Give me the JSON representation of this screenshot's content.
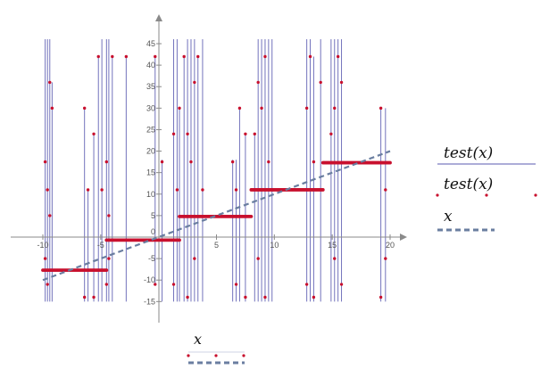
{
  "chart_data": {
    "type": "line",
    "xlim": [
      -11,
      21
    ],
    "ylim": [
      -18.5,
      49
    ],
    "x_ticks": [
      -10,
      -5,
      5,
      10,
      15,
      20
    ],
    "x_tick_labels": [
      "-10",
      "-5",
      "5",
      "10",
      "15",
      "20"
    ],
    "y_ticks": [
      -15,
      -10,
      -5,
      5,
      10,
      15,
      20,
      25,
      30,
      35,
      40,
      45
    ],
    "y_tick_labels": [
      "-15",
      "-10",
      "-5",
      "5",
      "10",
      "15",
      "20",
      "25",
      "30",
      "35",
      "40",
      "45"
    ],
    "origin_label": "0",
    "grid": false,
    "legend_position": "right",
    "series": [
      {
        "name": "test(x)",
        "style": "line",
        "color": "#5a5ab0",
        "steps": [
          {
            "x0": -10,
            "x1": -4.5,
            "y": -7.7
          },
          {
            "x0": -4.5,
            "x1": 1.8,
            "y": -0.7
          },
          {
            "x0": 1.8,
            "x1": 8,
            "y": 4.8
          },
          {
            "x0": 8,
            "x1": 14.2,
            "y": 11
          },
          {
            "x0": 14.2,
            "x1": 20,
            "y": 17.3
          }
        ],
        "spikes": [
          {
            "x": -9.8,
            "y0": -15,
            "y1": 49
          },
          {
            "x": -9.6,
            "y0": -15,
            "y1": 49
          },
          {
            "x": -9.4,
            "y0": -15,
            "y1": 49
          },
          {
            "x": -9.2,
            "y0": -15,
            "y1": 36
          },
          {
            "x": -6.4,
            "y0": -15,
            "y1": 30
          },
          {
            "x": -6.1,
            "y0": -15,
            "y1": 11
          },
          {
            "x": -5.6,
            "y0": -15,
            "y1": 24
          },
          {
            "x": -5.2,
            "y0": -15,
            "y1": 42
          },
          {
            "x": -4.9,
            "y0": -15,
            "y1": 49
          },
          {
            "x": -4.5,
            "y0": -15,
            "y1": 49
          },
          {
            "x": -4.3,
            "y0": -15,
            "y1": 49
          },
          {
            "x": -4.0,
            "y0": -15,
            "y1": 42
          },
          {
            "x": -2.8,
            "y0": -15,
            "y1": 42
          },
          {
            "x": -0.3,
            "y0": -11,
            "y1": 42
          },
          {
            "x": 0.3,
            "y0": -15,
            "y1": 18
          },
          {
            "x": 1.3,
            "y0": -15,
            "y1": 49
          },
          {
            "x": 1.6,
            "y0": -15,
            "y1": 49
          },
          {
            "x": 1.8,
            "y0": -15,
            "y1": 30
          },
          {
            "x": 2.2,
            "y0": -15,
            "y1": 42
          },
          {
            "x": 2.5,
            "y0": -15,
            "y1": 49
          },
          {
            "x": 2.8,
            "y0": -15,
            "y1": 49
          },
          {
            "x": 3.1,
            "y0": -15,
            "y1": 49
          },
          {
            "x": 3.4,
            "y0": -15,
            "y1": 42
          },
          {
            "x": 3.8,
            "y0": -15,
            "y1": 49
          },
          {
            "x": 6.4,
            "y0": -15,
            "y1": 18
          },
          {
            "x": 6.7,
            "y0": -15,
            "y1": 18
          },
          {
            "x": 7.0,
            "y0": -15,
            "y1": 30
          },
          {
            "x": 7.5,
            "y0": -15,
            "y1": 24
          },
          {
            "x": 8.3,
            "y0": -15,
            "y1": 24
          },
          {
            "x": 8.6,
            "y0": -15,
            "y1": 49
          },
          {
            "x": 8.9,
            "y0": -15,
            "y1": 49
          },
          {
            "x": 9.2,
            "y0": -15,
            "y1": 49
          },
          {
            "x": 9.5,
            "y0": -15,
            "y1": 49
          },
          {
            "x": 9.8,
            "y0": -15,
            "y1": 49
          },
          {
            "x": 12.8,
            "y0": -15,
            "y1": 49
          },
          {
            "x": 13.1,
            "y0": -15,
            "y1": 49
          },
          {
            "x": 13.4,
            "y0": -15,
            "y1": 42
          },
          {
            "x": 14.0,
            "y0": -15,
            "y1": 49
          },
          {
            "x": 14.9,
            "y0": -15,
            "y1": 49
          },
          {
            "x": 15.2,
            "y0": -15,
            "y1": 49
          },
          {
            "x": 15.5,
            "y0": -15,
            "y1": 49
          },
          {
            "x": 15.8,
            "y0": -15,
            "y1": 49
          },
          {
            "x": 19.2,
            "y0": -15,
            "y1": 30
          },
          {
            "x": 19.6,
            "y0": -15,
            "y1": 30
          }
        ]
      },
      {
        "name": "test(x)",
        "style": "points",
        "color": "#c8102e",
        "point_spacing": 0.1,
        "extra_points": [
          {
            "x": -9.8,
            "y": 17.5
          },
          {
            "x": -9.6,
            "y": 11
          },
          {
            "x": -9.4,
            "y": 36
          },
          {
            "x": -9.2,
            "y": 30
          },
          {
            "x": -9.8,
            "y": -5
          },
          {
            "x": -9.6,
            "y": -11
          },
          {
            "x": -9.4,
            "y": 5
          },
          {
            "x": -6.4,
            "y": 30
          },
          {
            "x": -6.1,
            "y": 11
          },
          {
            "x": -6.4,
            "y": -14
          },
          {
            "x": -5.6,
            "y": 24
          },
          {
            "x": -5.6,
            "y": -14
          },
          {
            "x": -5.2,
            "y": 42
          },
          {
            "x": -4.9,
            "y": 11
          },
          {
            "x": -4.5,
            "y": 17.5
          },
          {
            "x": -4.3,
            "y": 5
          },
          {
            "x": -4.0,
            "y": 42
          },
          {
            "x": -4.5,
            "y": -11
          },
          {
            "x": -4.3,
            "y": -5
          },
          {
            "x": -2.8,
            "y": 42
          },
          {
            "x": -0.3,
            "y": 42
          },
          {
            "x": 0.3,
            "y": 17.5
          },
          {
            "x": -0.3,
            "y": -11
          },
          {
            "x": 1.3,
            "y": 24
          },
          {
            "x": 1.6,
            "y": 11
          },
          {
            "x": 1.8,
            "y": 30
          },
          {
            "x": 2.2,
            "y": 42
          },
          {
            "x": 2.5,
            "y": 24
          },
          {
            "x": 2.8,
            "y": 17.5
          },
          {
            "x": 3.1,
            "y": 36
          },
          {
            "x": 3.4,
            "y": 42
          },
          {
            "x": 3.8,
            "y": 11
          },
          {
            "x": 1.3,
            "y": -11
          },
          {
            "x": 2.5,
            "y": -14
          },
          {
            "x": 3.1,
            "y": -5
          },
          {
            "x": 6.4,
            "y": 17.5
          },
          {
            "x": 6.7,
            "y": 11
          },
          {
            "x": 7.0,
            "y": 30
          },
          {
            "x": 7.5,
            "y": 24
          },
          {
            "x": 6.7,
            "y": -11
          },
          {
            "x": 7.5,
            "y": -14
          },
          {
            "x": 8.3,
            "y": 24
          },
          {
            "x": 8.6,
            "y": 36
          },
          {
            "x": 8.9,
            "y": 30
          },
          {
            "x": 9.2,
            "y": 42
          },
          {
            "x": 9.5,
            "y": 17.5
          },
          {
            "x": 9.8,
            "y": 11
          },
          {
            "x": 8.6,
            "y": -5
          },
          {
            "x": 9.2,
            "y": -14
          },
          {
            "x": 12.8,
            "y": 30
          },
          {
            "x": 13.1,
            "y": 42
          },
          {
            "x": 13.4,
            "y": 17.5
          },
          {
            "x": 14.0,
            "y": 36
          },
          {
            "x": 12.8,
            "y": -11
          },
          {
            "x": 13.4,
            "y": -14
          },
          {
            "x": 14.9,
            "y": 24
          },
          {
            "x": 15.2,
            "y": 30
          },
          {
            "x": 15.5,
            "y": 42
          },
          {
            "x": 15.8,
            "y": 36
          },
          {
            "x": 15.2,
            "y": -5
          },
          {
            "x": 15.8,
            "y": -11
          },
          {
            "x": 19.2,
            "y": 30
          },
          {
            "x": 19.6,
            "y": 11
          },
          {
            "x": 19.2,
            "y": -14
          },
          {
            "x": 19.6,
            "y": -5
          }
        ]
      },
      {
        "name": "x",
        "style": "dashed",
        "color": "#6a7ea0",
        "x": [
          -10,
          20
        ],
        "y": [
          -10,
          20
        ]
      }
    ],
    "bottom_legend": {
      "name": "x",
      "marker_color": "#c8102e",
      "line_color": "#6a7ea0"
    }
  }
}
